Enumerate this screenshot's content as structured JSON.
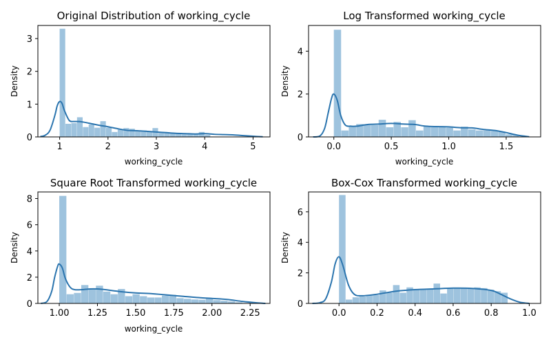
{
  "chart_data": [
    {
      "type": "histogram+kde",
      "title": "Original Distribution of working_cycle",
      "xlabel": "working_cycle",
      "ylabel": "Density",
      "xlim": [
        0.55,
        5.35
      ],
      "ylim": [
        0,
        3.4
      ],
      "xticks": [
        1,
        2,
        3,
        4,
        5
      ],
      "xtick_labels": [
        "1",
        "2",
        "3",
        "4",
        "5"
      ],
      "yticks": [
        0,
        1,
        2,
        3
      ],
      "ytick_labels": [
        "0",
        "1",
        "2",
        "3"
      ],
      "bar_color": "#9ec3de",
      "line_color": "#2a74ae",
      "bins": [
        {
          "x0": 1.0,
          "x1": 1.12,
          "density": 3.3
        },
        {
          "x0": 1.12,
          "x1": 1.24,
          "density": 0.4
        },
        {
          "x0": 1.24,
          "x1": 1.36,
          "density": 0.42
        },
        {
          "x0": 1.36,
          "x1": 1.48,
          "density": 0.6
        },
        {
          "x0": 1.48,
          "x1": 1.6,
          "density": 0.3
        },
        {
          "x0": 1.6,
          "x1": 1.72,
          "density": 0.38
        },
        {
          "x0": 1.72,
          "x1": 1.84,
          "density": 0.28
        },
        {
          "x0": 1.84,
          "x1": 1.96,
          "density": 0.48
        },
        {
          "x0": 1.96,
          "x1": 2.08,
          "density": 0.28
        },
        {
          "x0": 2.08,
          "x1": 2.2,
          "density": 0.15
        },
        {
          "x0": 2.2,
          "x1": 2.32,
          "density": 0.22
        },
        {
          "x0": 2.32,
          "x1": 2.44,
          "density": 0.27
        },
        {
          "x0": 2.44,
          "x1": 2.56,
          "density": 0.25
        },
        {
          "x0": 2.56,
          "x1": 2.68,
          "density": 0.18
        },
        {
          "x0": 2.68,
          "x1": 2.8,
          "density": 0.2
        },
        {
          "x0": 2.8,
          "x1": 2.92,
          "density": 0.16
        },
        {
          "x0": 2.92,
          "x1": 3.04,
          "density": 0.27
        },
        {
          "x0": 3.04,
          "x1": 3.16,
          "density": 0.12
        },
        {
          "x0": 3.16,
          "x1": 3.28,
          "density": 0.13
        },
        {
          "x0": 3.28,
          "x1": 3.4,
          "density": 0.12
        },
        {
          "x0": 3.4,
          "x1": 3.52,
          "density": 0.11
        },
        {
          "x0": 3.52,
          "x1": 3.64,
          "density": 0.08
        },
        {
          "x0": 3.64,
          "x1": 3.76,
          "density": 0.1
        },
        {
          "x0": 3.76,
          "x1": 3.88,
          "density": 0.1
        },
        {
          "x0": 3.88,
          "x1": 4.0,
          "density": 0.15
        },
        {
          "x0": 4.0,
          "x1": 4.12,
          "density": 0.06
        }
      ],
      "kde": {
        "x": [
          0.6,
          0.7,
          0.8,
          0.9,
          0.95,
          1.0,
          1.05,
          1.1,
          1.2,
          1.3,
          1.4,
          1.5,
          1.6,
          1.8,
          2.0,
          2.2,
          2.4,
          2.6,
          2.8,
          3.0,
          3.2,
          3.4,
          3.6,
          3.8,
          4.0,
          4.2,
          4.4,
          4.6,
          4.8,
          5.0,
          5.2
        ],
        "y": [
          0.01,
          0.05,
          0.2,
          0.65,
          0.95,
          1.08,
          1.02,
          0.8,
          0.5,
          0.47,
          0.47,
          0.45,
          0.42,
          0.36,
          0.31,
          0.25,
          0.2,
          0.19,
          0.17,
          0.15,
          0.13,
          0.11,
          0.1,
          0.09,
          0.1,
          0.08,
          0.07,
          0.06,
          0.04,
          0.02,
          0.005
        ]
      }
    },
    {
      "type": "histogram+kde",
      "title": "Log Transformed working_cycle",
      "xlabel": "working_cycle",
      "ylabel": "Density",
      "xlim": [
        -0.22,
        1.8
      ],
      "ylim": [
        0,
        5.2
      ],
      "xticks": [
        0,
        0.5,
        1,
        1.5
      ],
      "xtick_labels": [
        "0.0",
        "0.5",
        "1.0",
        "1.5"
      ],
      "yticks": [
        0,
        2,
        4
      ],
      "ytick_labels": [
        "0",
        "2",
        "4"
      ],
      "bar_color": "#9ec3de",
      "line_color": "#2a74ae",
      "bins": [
        {
          "x0": 0.0,
          "x1": 0.065,
          "density": 5.0
        },
        {
          "x0": 0.065,
          "x1": 0.13,
          "density": 0.3
        },
        {
          "x0": 0.13,
          "x1": 0.195,
          "density": 0.5
        },
        {
          "x0": 0.195,
          "x1": 0.26,
          "density": 0.6
        },
        {
          "x0": 0.26,
          "x1": 0.325,
          "density": 0.55
        },
        {
          "x0": 0.325,
          "x1": 0.39,
          "density": 0.55
        },
        {
          "x0": 0.39,
          "x1": 0.455,
          "density": 0.8
        },
        {
          "x0": 0.455,
          "x1": 0.52,
          "density": 0.45
        },
        {
          "x0": 0.52,
          "x1": 0.585,
          "density": 0.7
        },
        {
          "x0": 0.585,
          "x1": 0.65,
          "density": 0.45
        },
        {
          "x0": 0.65,
          "x1": 0.715,
          "density": 0.78
        },
        {
          "x0": 0.715,
          "x1": 0.78,
          "density": 0.3
        },
        {
          "x0": 0.78,
          "x1": 0.845,
          "density": 0.5
        },
        {
          "x0": 0.845,
          "x1": 0.91,
          "density": 0.45
        },
        {
          "x0": 0.91,
          "x1": 0.975,
          "density": 0.45
        },
        {
          "x0": 0.975,
          "x1": 1.04,
          "density": 0.43
        },
        {
          "x0": 1.04,
          "x1": 1.105,
          "density": 0.3
        },
        {
          "x0": 1.105,
          "x1": 1.17,
          "density": 0.48
        },
        {
          "x0": 1.17,
          "x1": 1.235,
          "density": 0.35
        },
        {
          "x0": 1.235,
          "x1": 1.3,
          "density": 0.3
        },
        {
          "x0": 1.3,
          "x1": 1.365,
          "density": 0.3
        },
        {
          "x0": 1.365,
          "x1": 1.43,
          "density": 0.28
        },
        {
          "x0": 1.43,
          "x1": 1.495,
          "density": 0.25
        },
        {
          "x0": 1.495,
          "x1": 1.56,
          "density": 0.12
        },
        {
          "x0": 1.56,
          "x1": 1.61,
          "density": 0.1
        }
      ],
      "kde": {
        "x": [
          -0.18,
          -0.12,
          -0.08,
          -0.05,
          -0.02,
          0.0,
          0.03,
          0.06,
          0.1,
          0.15,
          0.2,
          0.3,
          0.4,
          0.5,
          0.6,
          0.7,
          0.8,
          0.9,
          1.0,
          1.1,
          1.2,
          1.3,
          1.4,
          1.5,
          1.6,
          1.7
        ],
        "y": [
          0.0,
          0.05,
          0.4,
          1.1,
          1.8,
          2.0,
          1.7,
          1.0,
          0.55,
          0.5,
          0.5,
          0.58,
          0.6,
          0.63,
          0.6,
          0.58,
          0.5,
          0.48,
          0.47,
          0.43,
          0.42,
          0.35,
          0.3,
          0.2,
          0.08,
          0.01
        ]
      }
    },
    {
      "type": "histogram+kde",
      "title": "Square Root Transformed working_cycle",
      "xlabel": "working_cycle",
      "ylabel": "Density",
      "xlim": [
        0.86,
        2.38
      ],
      "ylim": [
        0,
        8.5
      ],
      "xticks": [
        1.0,
        1.25,
        1.5,
        1.75,
        2.0,
        2.25
      ],
      "xtick_labels": [
        "1.00",
        "1.25",
        "1.50",
        "1.75",
        "2.00",
        "2.25"
      ],
      "yticks": [
        0,
        2,
        4,
        6,
        8
      ],
      "ytick_labels": [
        "0",
        "2",
        "4",
        "6",
        "8"
      ],
      "bar_color": "#9ec3de",
      "line_color": "#2a74ae",
      "bins": [
        {
          "x0": 1.0,
          "x1": 1.048,
          "density": 8.2
        },
        {
          "x0": 1.048,
          "x1": 1.096,
          "density": 0.7
        },
        {
          "x0": 1.096,
          "x1": 1.144,
          "density": 0.8
        },
        {
          "x0": 1.144,
          "x1": 1.192,
          "density": 1.4
        },
        {
          "x0": 1.192,
          "x1": 1.24,
          "density": 1.1
        },
        {
          "x0": 1.24,
          "x1": 1.288,
          "density": 1.35
        },
        {
          "x0": 1.288,
          "x1": 1.336,
          "density": 0.9
        },
        {
          "x0": 1.336,
          "x1": 1.384,
          "density": 0.7
        },
        {
          "x0": 1.384,
          "x1": 1.432,
          "density": 1.1
        },
        {
          "x0": 1.432,
          "x1": 1.48,
          "density": 0.55
        },
        {
          "x0": 1.48,
          "x1": 1.528,
          "density": 0.7
        },
        {
          "x0": 1.528,
          "x1": 1.576,
          "density": 0.55
        },
        {
          "x0": 1.576,
          "x1": 1.624,
          "density": 0.45
        },
        {
          "x0": 1.624,
          "x1": 1.672,
          "density": 0.45
        },
        {
          "x0": 1.672,
          "x1": 1.72,
          "density": 0.6
        },
        {
          "x0": 1.72,
          "x1": 1.768,
          "density": 0.65
        },
        {
          "x0": 1.768,
          "x1": 1.816,
          "density": 0.4
        },
        {
          "x0": 1.816,
          "x1": 1.864,
          "density": 0.35
        },
        {
          "x0": 1.864,
          "x1": 1.912,
          "density": 0.3
        },
        {
          "x0": 1.912,
          "x1": 1.96,
          "density": 0.28
        },
        {
          "x0": 1.96,
          "x1": 2.008,
          "density": 0.4
        },
        {
          "x0": 2.008,
          "x1": 2.056,
          "density": 0.25
        },
        {
          "x0": 2.056,
          "x1": 2.104,
          "density": 0.2
        },
        {
          "x0": 2.104,
          "x1": 2.152,
          "density": 0.15
        },
        {
          "x0": 2.152,
          "x1": 2.2,
          "density": 0.08
        }
      ],
      "kde": {
        "x": [
          0.88,
          0.92,
          0.95,
          0.97,
          0.99,
          1.0,
          1.02,
          1.04,
          1.07,
          1.1,
          1.15,
          1.2,
          1.25,
          1.3,
          1.4,
          1.5,
          1.6,
          1.7,
          1.8,
          1.9,
          2.0,
          2.1,
          2.2,
          2.3,
          2.35
        ],
        "y": [
          0.0,
          0.15,
          0.9,
          2.0,
          2.85,
          3.0,
          2.7,
          1.9,
          1.25,
          1.05,
          1.05,
          1.1,
          1.1,
          1.05,
          0.9,
          0.8,
          0.75,
          0.65,
          0.55,
          0.45,
          0.38,
          0.3,
          0.15,
          0.04,
          0.0
        ]
      }
    },
    {
      "type": "histogram+kde",
      "title": "Box-Cox Transformed working_cycle",
      "xlabel": "",
      "ylabel": "Density",
      "xlim": [
        -0.16,
        1.06
      ],
      "ylim": [
        0,
        7.3
      ],
      "xticks": [
        0,
        0.2,
        0.4,
        0.6,
        0.8,
        1.0
      ],
      "xtick_labels": [
        "0.0",
        "0.2",
        "0.4",
        "0.6",
        "0.8",
        "1.0"
      ],
      "yticks": [
        0,
        2,
        4,
        6
      ],
      "ytick_labels": [
        "0",
        "2",
        "4",
        "6"
      ],
      "bar_color": "#9ec3de",
      "line_color": "#2a74ae",
      "bins": [
        {
          "x0": 0.0,
          "x1": 0.0355,
          "density": 7.1
        },
        {
          "x0": 0.0355,
          "x1": 0.071,
          "density": 0.25
        },
        {
          "x0": 0.071,
          "x1": 0.1065,
          "density": 0.4
        },
        {
          "x0": 0.1065,
          "x1": 0.142,
          "density": 0.45
        },
        {
          "x0": 0.142,
          "x1": 0.1775,
          "density": 0.55
        },
        {
          "x0": 0.1775,
          "x1": 0.213,
          "density": 0.55
        },
        {
          "x0": 0.213,
          "x1": 0.2485,
          "density": 0.85
        },
        {
          "x0": 0.2485,
          "x1": 0.284,
          "density": 0.7
        },
        {
          "x0": 0.284,
          "x1": 0.3195,
          "density": 1.2
        },
        {
          "x0": 0.3195,
          "x1": 0.355,
          "density": 0.7
        },
        {
          "x0": 0.355,
          "x1": 0.3905,
          "density": 1.05
        },
        {
          "x0": 0.3905,
          "x1": 0.426,
          "density": 0.95
        },
        {
          "x0": 0.426,
          "x1": 0.4615,
          "density": 0.9
        },
        {
          "x0": 0.4615,
          "x1": 0.497,
          "density": 0.95
        },
        {
          "x0": 0.497,
          "x1": 0.5325,
          "density": 1.3
        },
        {
          "x0": 0.5325,
          "x1": 0.568,
          "density": 0.65
        },
        {
          "x0": 0.568,
          "x1": 0.6035,
          "density": 1.0
        },
        {
          "x0": 0.6035,
          "x1": 0.639,
          "density": 1.0
        },
        {
          "x0": 0.639,
          "x1": 0.6745,
          "density": 1.0
        },
        {
          "x0": 0.6745,
          "x1": 0.71,
          "density": 1.0
        },
        {
          "x0": 0.71,
          "x1": 0.7455,
          "density": 1.05
        },
        {
          "x0": 0.7455,
          "x1": 0.781,
          "density": 1.0
        },
        {
          "x0": 0.781,
          "x1": 0.8165,
          "density": 0.9
        },
        {
          "x0": 0.8165,
          "x1": 0.852,
          "density": 0.8
        },
        {
          "x0": 0.852,
          "x1": 0.8875,
          "density": 0.7
        }
      ],
      "kde": {
        "x": [
          -0.14,
          -0.1,
          -0.07,
          -0.04,
          -0.02,
          0.0,
          0.02,
          0.05,
          0.08,
          0.12,
          0.2,
          0.3,
          0.4,
          0.5,
          0.6,
          0.7,
          0.8,
          0.85,
          0.9,
          0.95,
          1.0
        ],
        "y": [
          0.0,
          0.05,
          0.3,
          1.4,
          2.6,
          3.05,
          2.5,
          1.2,
          0.6,
          0.5,
          0.6,
          0.8,
          0.9,
          0.95,
          1.0,
          0.98,
          0.85,
          0.6,
          0.3,
          0.08,
          0.0
        ]
      }
    }
  ]
}
